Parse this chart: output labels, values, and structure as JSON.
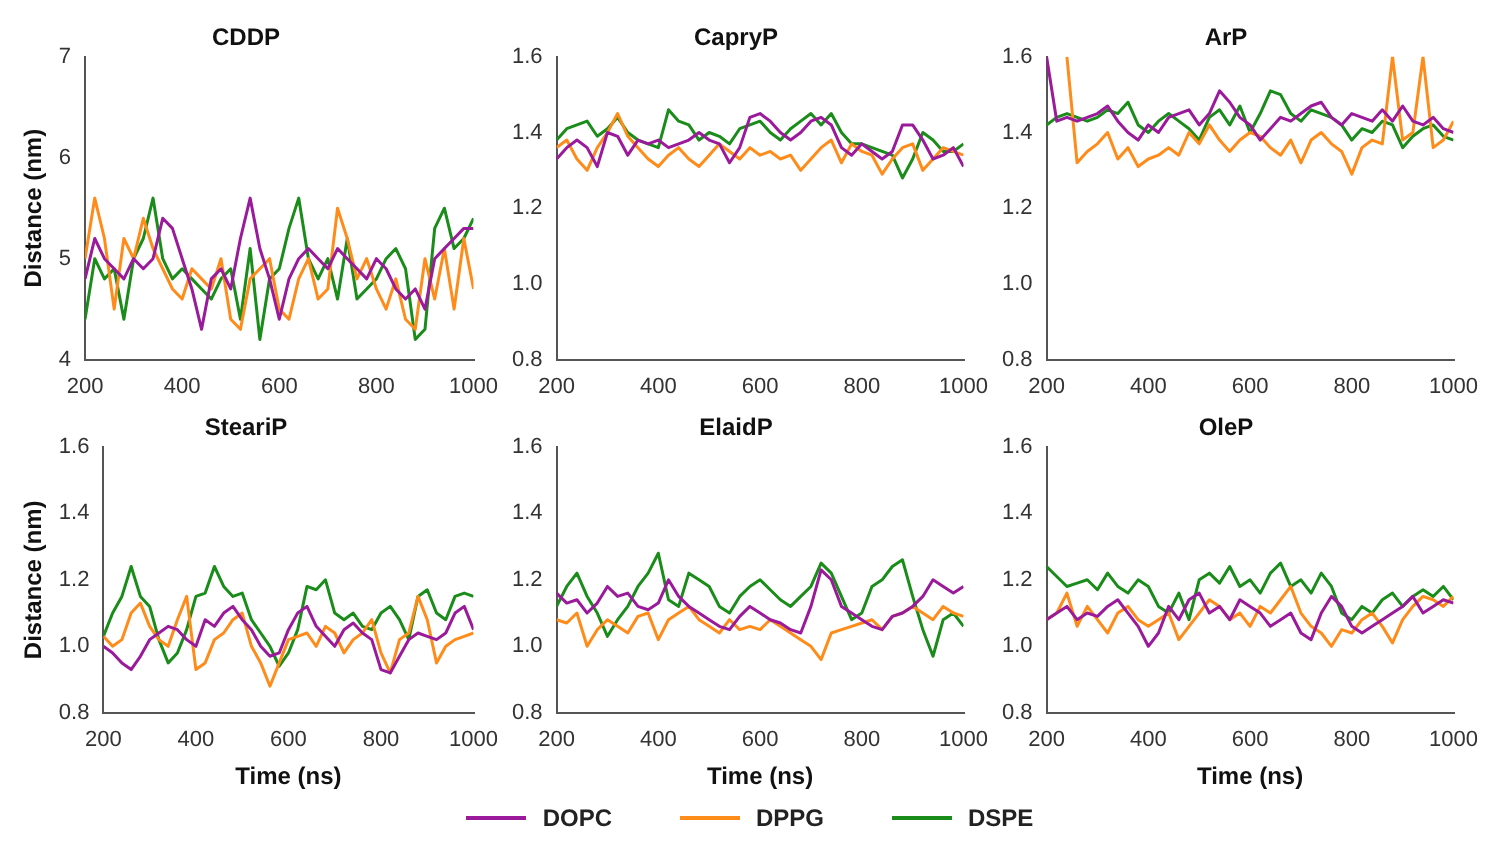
{
  "chart_data": [
    {
      "type": "line",
      "title": "CDDP",
      "ylabel": "Distance (nm)",
      "xlim": [
        200,
        1000
      ],
      "xticks": [
        200,
        400,
        600,
        800,
        1000
      ],
      "ylim": [
        4,
        7
      ],
      "yticks": [
        4,
        5,
        6,
        7
      ],
      "grid": false,
      "marker": "none",
      "x": [
        200,
        220,
        240,
        260,
        280,
        300,
        320,
        340,
        360,
        380,
        400,
        420,
        440,
        460,
        480,
        500,
        520,
        540,
        560,
        580,
        600,
        620,
        640,
        660,
        680,
        700,
        720,
        740,
        760,
        780,
        800,
        820,
        840,
        860,
        880,
        900,
        920,
        940,
        960,
        980,
        1000
      ],
      "series": [
        {
          "color": "#9b1a9b",
          "values": [
            4.8,
            5.2,
            5.0,
            4.9,
            4.8,
            5.0,
            4.9,
            5.0,
            5.4,
            5.3,
            5.0,
            4.7,
            4.3,
            4.8,
            4.9,
            4.7,
            5.2,
            5.6,
            5.1,
            4.8,
            4.4,
            4.8,
            5.0,
            5.1,
            5.0,
            4.9,
            5.1,
            5.0,
            4.9,
            4.8,
            5.0,
            4.9,
            4.7,
            4.6,
            4.7,
            4.5,
            5.0,
            5.1,
            5.2,
            5.3,
            5.3
          ]
        },
        {
          "color": "#ff8c1a",
          "values": [
            5.0,
            5.6,
            5.2,
            4.5,
            5.2,
            5.0,
            5.4,
            5.1,
            4.9,
            4.7,
            4.6,
            4.9,
            4.8,
            4.7,
            5.0,
            4.4,
            4.3,
            4.8,
            4.9,
            5.0,
            4.5,
            4.4,
            4.8,
            5.0,
            4.6,
            4.7,
            5.5,
            5.2,
            4.8,
            5.0,
            4.7,
            4.5,
            4.8,
            4.4,
            4.3,
            5.0,
            4.6,
            5.1,
            4.5,
            5.2,
            4.7
          ]
        },
        {
          "color": "#1a8c1a",
          "values": [
            4.4,
            5.0,
            4.8,
            4.9,
            4.4,
            5.0,
            5.2,
            5.6,
            5.0,
            4.8,
            4.9,
            4.8,
            4.7,
            4.6,
            4.8,
            4.9,
            4.4,
            5.1,
            4.2,
            4.8,
            4.9,
            5.3,
            5.6,
            5.0,
            4.8,
            5.0,
            4.6,
            5.2,
            4.6,
            4.7,
            4.8,
            5.0,
            5.1,
            4.9,
            4.2,
            4.3,
            5.3,
            5.5,
            5.1,
            5.2,
            5.4
          ]
        }
      ]
    },
    {
      "type": "line",
      "title": "CapryP",
      "xlim": [
        200,
        1000
      ],
      "xticks": [
        200,
        400,
        600,
        800,
        1000
      ],
      "ylim": [
        0.8,
        1.6
      ],
      "yticks": [
        {
          "value": 0.8,
          "label": "0.8"
        },
        {
          "value": 1.0,
          "label": "1.0"
        },
        {
          "value": 1.2,
          "label": "1.2"
        },
        {
          "value": 1.4,
          "label": "1.4"
        },
        {
          "value": 1.6,
          "label": "1.6"
        }
      ],
      "grid": false,
      "marker": "none",
      "x": [
        200,
        220,
        240,
        260,
        280,
        300,
        320,
        340,
        360,
        380,
        400,
        420,
        440,
        460,
        480,
        500,
        520,
        540,
        560,
        580,
        600,
        620,
        640,
        660,
        680,
        700,
        720,
        740,
        760,
        780,
        800,
        820,
        840,
        860,
        880,
        900,
        920,
        940,
        960,
        980,
        1000
      ],
      "series": [
        {
          "color": "#9b1a9b",
          "values": [
            1.33,
            1.36,
            1.38,
            1.36,
            1.31,
            1.4,
            1.39,
            1.34,
            1.38,
            1.37,
            1.38,
            1.36,
            1.37,
            1.38,
            1.4,
            1.38,
            1.37,
            1.32,
            1.36,
            1.44,
            1.45,
            1.43,
            1.4,
            1.38,
            1.4,
            1.43,
            1.44,
            1.42,
            1.36,
            1.34,
            1.37,
            1.35,
            1.33,
            1.35,
            1.42,
            1.42,
            1.38,
            1.33,
            1.34,
            1.36,
            1.31
          ]
        },
        {
          "color": "#ff8c1a",
          "values": [
            1.36,
            1.38,
            1.33,
            1.3,
            1.36,
            1.4,
            1.45,
            1.39,
            1.36,
            1.33,
            1.31,
            1.34,
            1.36,
            1.33,
            1.31,
            1.34,
            1.37,
            1.35,
            1.33,
            1.36,
            1.34,
            1.35,
            1.33,
            1.34,
            1.3,
            1.33,
            1.36,
            1.38,
            1.32,
            1.37,
            1.35,
            1.34,
            1.29,
            1.33,
            1.36,
            1.37,
            1.3,
            1.33,
            1.36,
            1.35,
            1.34
          ]
        },
        {
          "color": "#1a8c1a",
          "values": [
            1.38,
            1.41,
            1.42,
            1.43,
            1.39,
            1.41,
            1.44,
            1.4,
            1.38,
            1.37,
            1.36,
            1.46,
            1.43,
            1.42,
            1.38,
            1.4,
            1.39,
            1.37,
            1.41,
            1.42,
            1.43,
            1.4,
            1.38,
            1.41,
            1.43,
            1.45,
            1.42,
            1.45,
            1.4,
            1.37,
            1.37,
            1.36,
            1.35,
            1.34,
            1.28,
            1.33,
            1.4,
            1.38,
            1.35,
            1.35,
            1.37
          ]
        }
      ]
    },
    {
      "type": "line",
      "title": "ArP",
      "xlim": [
        200,
        1000
      ],
      "xticks": [
        200,
        400,
        600,
        800,
        1000
      ],
      "ylim": [
        0.8,
        1.6
      ],
      "yticks": [
        {
          "value": 0.8,
          "label": "0.8"
        },
        {
          "value": 1.0,
          "label": "1.0"
        },
        {
          "value": 1.2,
          "label": "1.2"
        },
        {
          "value": 1.4,
          "label": "1.4"
        },
        {
          "value": 1.6,
          "label": "1.6"
        }
      ],
      "grid": false,
      "marker": "none",
      "x": [
        200,
        220,
        240,
        260,
        280,
        300,
        320,
        340,
        360,
        380,
        400,
        420,
        440,
        460,
        480,
        500,
        520,
        540,
        560,
        580,
        600,
        620,
        640,
        660,
        680,
        700,
        720,
        740,
        760,
        780,
        800,
        820,
        840,
        860,
        880,
        900,
        920,
        940,
        960,
        980,
        1000
      ],
      "series": [
        {
          "color": "#9b1a9b",
          "values": [
            1.6,
            1.43,
            1.44,
            1.43,
            1.44,
            1.45,
            1.47,
            1.43,
            1.4,
            1.38,
            1.42,
            1.4,
            1.44,
            1.45,
            1.46,
            1.42,
            1.45,
            1.51,
            1.48,
            1.44,
            1.42,
            1.38,
            1.41,
            1.44,
            1.43,
            1.45,
            1.47,
            1.48,
            1.44,
            1.42,
            1.45,
            1.44,
            1.43,
            1.46,
            1.43,
            1.47,
            1.43,
            1.42,
            1.44,
            1.41,
            1.4
          ]
        },
        {
          "color": "#ff8c1a",
          "values": [
            null,
            null,
            1.6,
            1.32,
            1.35,
            1.37,
            1.4,
            1.33,
            1.36,
            1.31,
            1.33,
            1.34,
            1.36,
            1.34,
            1.4,
            1.37,
            1.42,
            1.38,
            1.35,
            1.38,
            1.4,
            1.39,
            1.36,
            1.34,
            1.38,
            1.32,
            1.38,
            1.4,
            1.37,
            1.35,
            1.29,
            1.36,
            1.38,
            1.37,
            1.6,
            1.38,
            1.4,
            1.6,
            1.36,
            1.38,
            1.43
          ]
        },
        {
          "color": "#1a8c1a",
          "values": [
            1.42,
            1.44,
            1.45,
            1.44,
            1.43,
            1.44,
            1.46,
            1.45,
            1.48,
            1.42,
            1.4,
            1.43,
            1.45,
            1.43,
            1.41,
            1.38,
            1.44,
            1.46,
            1.42,
            1.47,
            1.4,
            1.45,
            1.51,
            1.5,
            1.45,
            1.43,
            1.46,
            1.45,
            1.44,
            1.42,
            1.38,
            1.41,
            1.4,
            1.43,
            1.42,
            1.36,
            1.39,
            1.41,
            1.42,
            1.39,
            1.38
          ]
        }
      ]
    },
    {
      "type": "line",
      "title": "SteariP",
      "xlabel": "Time (ns)",
      "ylabel": "Distance (nm)",
      "xlim": [
        200,
        1000
      ],
      "xticks": [
        200,
        400,
        600,
        800,
        1000
      ],
      "ylim": [
        0.8,
        1.6
      ],
      "yticks": [
        {
          "value": 0.8,
          "label": "0.8"
        },
        {
          "value": 1.0,
          "label": "1.0"
        },
        {
          "value": 1.2,
          "label": "1.2"
        },
        {
          "value": 1.4,
          "label": "1.4"
        },
        {
          "value": 1.6,
          "label": "1.6"
        }
      ],
      "grid": false,
      "marker": "none",
      "x": [
        200,
        220,
        240,
        260,
        280,
        300,
        320,
        340,
        360,
        380,
        400,
        420,
        440,
        460,
        480,
        500,
        520,
        540,
        560,
        580,
        600,
        620,
        640,
        660,
        680,
        700,
        720,
        740,
        760,
        780,
        800,
        820,
        840,
        860,
        880,
        900,
        920,
        940,
        960,
        980,
        1000
      ],
      "series": [
        {
          "color": "#9b1a9b",
          "values": [
            1.0,
            0.98,
            0.95,
            0.93,
            0.97,
            1.02,
            1.04,
            1.06,
            1.05,
            1.02,
            1.0,
            1.08,
            1.06,
            1.1,
            1.12,
            1.08,
            1.05,
            1.0,
            0.97,
            0.98,
            1.05,
            1.1,
            1.12,
            1.06,
            1.03,
            1.0,
            1.05,
            1.07,
            1.04,
            1.02,
            0.93,
            0.92,
            0.97,
            1.02,
            1.04,
            1.03,
            1.02,
            1.04,
            1.1,
            1.12,
            1.05
          ]
        },
        {
          "color": "#ff8c1a",
          "values": [
            1.03,
            1.0,
            1.02,
            1.1,
            1.13,
            1.06,
            1.02,
            1.0,
            1.08,
            1.15,
            0.93,
            0.95,
            1.02,
            1.04,
            1.08,
            1.1,
            1.0,
            0.95,
            0.88,
            0.95,
            1.02,
            1.03,
            1.04,
            1.0,
            1.06,
            1.04,
            0.98,
            1.02,
            1.04,
            1.08,
            0.98,
            0.92,
            1.02,
            1.04,
            1.15,
            1.08,
            0.95,
            1.0,
            1.02,
            1.03,
            1.04
          ]
        },
        {
          "color": "#1a8c1a",
          "values": [
            1.03,
            1.1,
            1.15,
            1.24,
            1.15,
            1.12,
            1.02,
            0.95,
            0.98,
            1.05,
            1.15,
            1.16,
            1.24,
            1.18,
            1.15,
            1.16,
            1.08,
            1.04,
            1.0,
            0.94,
            0.98,
            1.05,
            1.18,
            1.17,
            1.2,
            1.1,
            1.08,
            1.1,
            1.06,
            1.05,
            1.1,
            1.12,
            1.08,
            1.02,
            1.15,
            1.17,
            1.1,
            1.08,
            1.15,
            1.16,
            1.15
          ]
        }
      ]
    },
    {
      "type": "line",
      "title": "ElaidP",
      "xlabel": "Time (ns)",
      "xlim": [
        200,
        1000
      ],
      "xticks": [
        200,
        400,
        600,
        800,
        1000
      ],
      "ylim": [
        0.8,
        1.6
      ],
      "yticks": [
        {
          "value": 0.8,
          "label": "0.8"
        },
        {
          "value": 1.0,
          "label": "1.0"
        },
        {
          "value": 1.2,
          "label": "1.2"
        },
        {
          "value": 1.4,
          "label": "1.4"
        },
        {
          "value": 1.6,
          "label": "1.6"
        }
      ],
      "grid": false,
      "marker": "none",
      "legend": "bottom",
      "x": [
        200,
        220,
        240,
        260,
        280,
        300,
        320,
        340,
        360,
        380,
        400,
        420,
        440,
        460,
        480,
        500,
        520,
        540,
        560,
        580,
        600,
        620,
        640,
        660,
        680,
        700,
        720,
        740,
        760,
        780,
        800,
        820,
        840,
        860,
        880,
        900,
        920,
        940,
        960,
        980,
        1000
      ],
      "series": [
        {
          "name": "DOPC",
          "color": "#9b1a9b",
          "values": [
            1.16,
            1.13,
            1.14,
            1.1,
            1.13,
            1.18,
            1.15,
            1.16,
            1.12,
            1.11,
            1.13,
            1.2,
            1.15,
            1.12,
            1.1,
            1.08,
            1.06,
            1.05,
            1.09,
            1.12,
            1.1,
            1.08,
            1.07,
            1.05,
            1.04,
            1.12,
            1.23,
            1.2,
            1.12,
            1.1,
            1.08,
            1.06,
            1.05,
            1.09,
            1.1,
            1.12,
            1.15,
            1.2,
            1.18,
            1.16,
            1.18
          ]
        },
        {
          "name": "DPPG",
          "color": "#ff8c1a",
          "values": [
            1.08,
            1.07,
            1.1,
            1.0,
            1.05,
            1.08,
            1.06,
            1.04,
            1.09,
            1.1,
            1.02,
            1.08,
            1.1,
            1.12,
            1.08,
            1.06,
            1.04,
            1.08,
            1.05,
            1.06,
            1.05,
            1.08,
            1.06,
            1.04,
            1.02,
            1.0,
            0.96,
            1.04,
            1.05,
            1.06,
            1.07,
            1.08,
            1.05,
            1.09,
            1.1,
            1.12,
            1.1,
            1.08,
            1.12,
            1.1,
            1.09
          ]
        },
        {
          "name": "DSPE",
          "color": "#1a8c1a",
          "values": [
            1.12,
            1.18,
            1.22,
            1.15,
            1.1,
            1.03,
            1.08,
            1.12,
            1.18,
            1.22,
            1.28,
            1.14,
            1.12,
            1.22,
            1.2,
            1.18,
            1.12,
            1.1,
            1.15,
            1.18,
            1.2,
            1.17,
            1.14,
            1.12,
            1.15,
            1.18,
            1.25,
            1.22,
            1.15,
            1.08,
            1.1,
            1.18,
            1.2,
            1.24,
            1.26,
            1.15,
            1.05,
            0.97,
            1.08,
            1.1,
            1.06
          ]
        }
      ]
    },
    {
      "type": "line",
      "title": "OleP",
      "xlabel": "Time (ns)",
      "xlim": [
        200,
        1000
      ],
      "xticks": [
        200,
        400,
        600,
        800,
        1000
      ],
      "ylim": [
        0.8,
        1.6
      ],
      "yticks": [
        {
          "value": 0.8,
          "label": "0.8"
        },
        {
          "value": 1.0,
          "label": "1.0"
        },
        {
          "value": 1.2,
          "label": "1.2"
        },
        {
          "value": 1.4,
          "label": "1.4"
        },
        {
          "value": 1.6,
          "label": "1.6"
        }
      ],
      "grid": false,
      "marker": "none",
      "x": [
        200,
        220,
        240,
        260,
        280,
        300,
        320,
        340,
        360,
        380,
        400,
        420,
        440,
        460,
        480,
        500,
        520,
        540,
        560,
        580,
        600,
        620,
        640,
        660,
        680,
        700,
        720,
        740,
        760,
        780,
        800,
        820,
        840,
        860,
        880,
        900,
        920,
        940,
        960,
        980,
        1000
      ],
      "series": [
        {
          "color": "#9b1a9b",
          "values": [
            1.08,
            1.1,
            1.12,
            1.08,
            1.1,
            1.09,
            1.12,
            1.14,
            1.1,
            1.06,
            1.0,
            1.04,
            1.12,
            1.08,
            1.14,
            1.16,
            1.1,
            1.12,
            1.08,
            1.14,
            1.12,
            1.1,
            1.06,
            1.08,
            1.1,
            1.04,
            1.02,
            1.1,
            1.15,
            1.12,
            1.06,
            1.04,
            1.06,
            1.08,
            1.1,
            1.12,
            1.15,
            1.1,
            1.12,
            1.14,
            1.13
          ]
        },
        {
          "color": "#ff8c1a",
          "values": [
            1.08,
            1.1,
            1.16,
            1.06,
            1.12,
            1.08,
            1.04,
            1.1,
            1.12,
            1.08,
            1.06,
            1.08,
            1.1,
            1.02,
            1.06,
            1.1,
            1.14,
            1.12,
            1.08,
            1.1,
            1.06,
            1.12,
            1.1,
            1.14,
            1.18,
            1.1,
            1.06,
            1.04,
            1.0,
            1.05,
            1.04,
            1.08,
            1.1,
            1.06,
            1.01,
            1.08,
            1.12,
            1.15,
            1.14,
            1.12,
            1.15
          ]
        },
        {
          "color": "#1a8c1a",
          "values": [
            1.24,
            1.21,
            1.18,
            1.19,
            1.2,
            1.17,
            1.22,
            1.18,
            1.16,
            1.2,
            1.18,
            1.12,
            1.1,
            1.16,
            1.08,
            1.2,
            1.22,
            1.19,
            1.24,
            1.18,
            1.2,
            1.16,
            1.22,
            1.25,
            1.18,
            1.2,
            1.16,
            1.22,
            1.18,
            1.1,
            1.08,
            1.12,
            1.1,
            1.14,
            1.16,
            1.12,
            1.15,
            1.17,
            1.15,
            1.18,
            1.14
          ]
        }
      ]
    }
  ]
}
